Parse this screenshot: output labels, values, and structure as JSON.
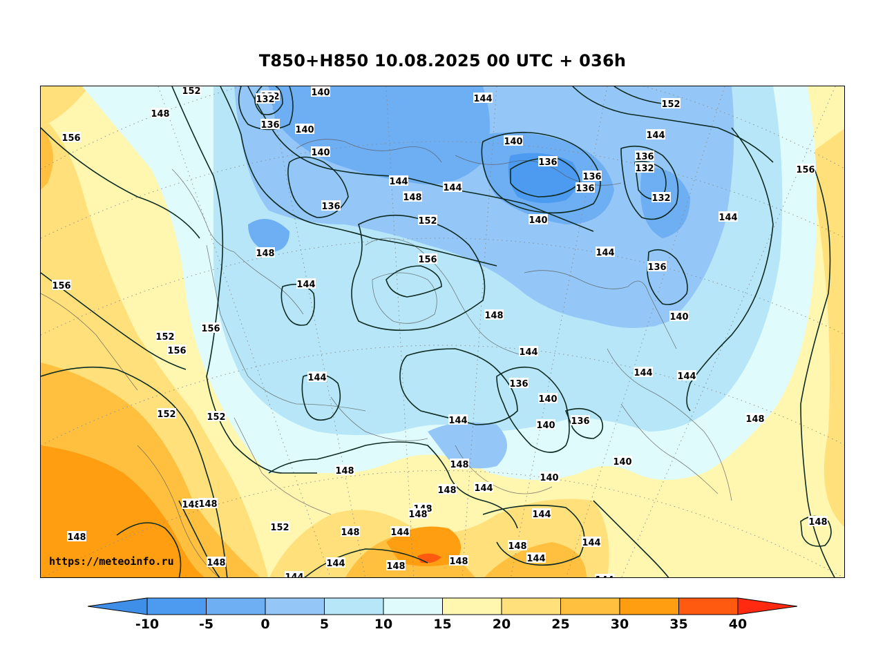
{
  "title": "T850+H850 10.08.2025 00 UTC + 036h",
  "watermark": "https://meteoinfo.ru",
  "map": {
    "field": "T850",
    "contours": "H850",
    "contour_labels": [
      "132",
      "136",
      "140",
      "144",
      "148",
      "152",
      "156"
    ]
  },
  "colorbar": {
    "ticks": [
      "-10",
      "-5",
      "0",
      "5",
      "10",
      "15",
      "20",
      "25",
      "30",
      "35",
      "40"
    ],
    "colors": [
      "#3f8ee8",
      "#4c9bf0",
      "#6eaef3",
      "#94c7f7",
      "#b6e6f7",
      "#e0fbfb",
      "#fff6b0",
      "#ffe07a",
      "#ffc040",
      "#ff9e10",
      "#ff5a10",
      "#ff2a10"
    ]
  },
  "labels": [
    {
      "t": "152"
    },
    {
      "t": "132"
    },
    {
      "t": "140"
    },
    {
      "t": "132"
    },
    {
      "t": "144"
    },
    {
      "t": "152"
    },
    {
      "t": "148"
    },
    {
      "t": "136"
    },
    {
      "t": "140"
    },
    {
      "t": "156"
    },
    {
      "t": "140"
    },
    {
      "t": "144"
    },
    {
      "t": "140"
    },
    {
      "t": "136"
    },
    {
      "t": "136"
    },
    {
      "t": "132"
    },
    {
      "t": "156"
    },
    {
      "t": "144"
    },
    {
      "t": "144"
    },
    {
      "t": "136"
    },
    {
      "t": "136"
    },
    {
      "t": "148"
    },
    {
      "t": "132"
    },
    {
      "t": "152"
    },
    {
      "t": "140"
    },
    {
      "t": "136"
    },
    {
      "t": "144"
    },
    {
      "t": "144"
    },
    {
      "t": "148"
    },
    {
      "t": "156"
    },
    {
      "t": "136"
    },
    {
      "t": "156"
    },
    {
      "t": "144"
    },
    {
      "t": "140"
    },
    {
      "t": "152"
    },
    {
      "t": "148"
    },
    {
      "t": "156"
    },
    {
      "t": "156"
    },
    {
      "t": "144"
    },
    {
      "t": "144"
    },
    {
      "t": "144"
    },
    {
      "t": "144"
    },
    {
      "t": "136"
    },
    {
      "t": "140"
    },
    {
      "t": "152"
    },
    {
      "t": "152"
    },
    {
      "t": "144"
    },
    {
      "t": "140"
    },
    {
      "t": "136"
    },
    {
      "t": "148"
    },
    {
      "t": "148"
    },
    {
      "t": "148"
    },
    {
      "t": "140"
    },
    {
      "t": "140"
    },
    {
      "t": "148"
    },
    {
      "t": "144"
    },
    {
      "t": "148"
    },
    {
      "t": "148"
    },
    {
      "t": "148"
    },
    {
      "t": "148"
    },
    {
      "t": "144"
    },
    {
      "t": "152"
    },
    {
      "t": "148"
    },
    {
      "t": "144"
    },
    {
      "t": "148"
    },
    {
      "t": "148"
    },
    {
      "t": "144"
    },
    {
      "t": "144"
    },
    {
      "t": "148"
    },
    {
      "t": "148"
    },
    {
      "t": "144"
    },
    {
      "t": "148"
    },
    {
      "t": "148"
    },
    {
      "t": "144"
    },
    {
      "t": "144"
    }
  ]
}
